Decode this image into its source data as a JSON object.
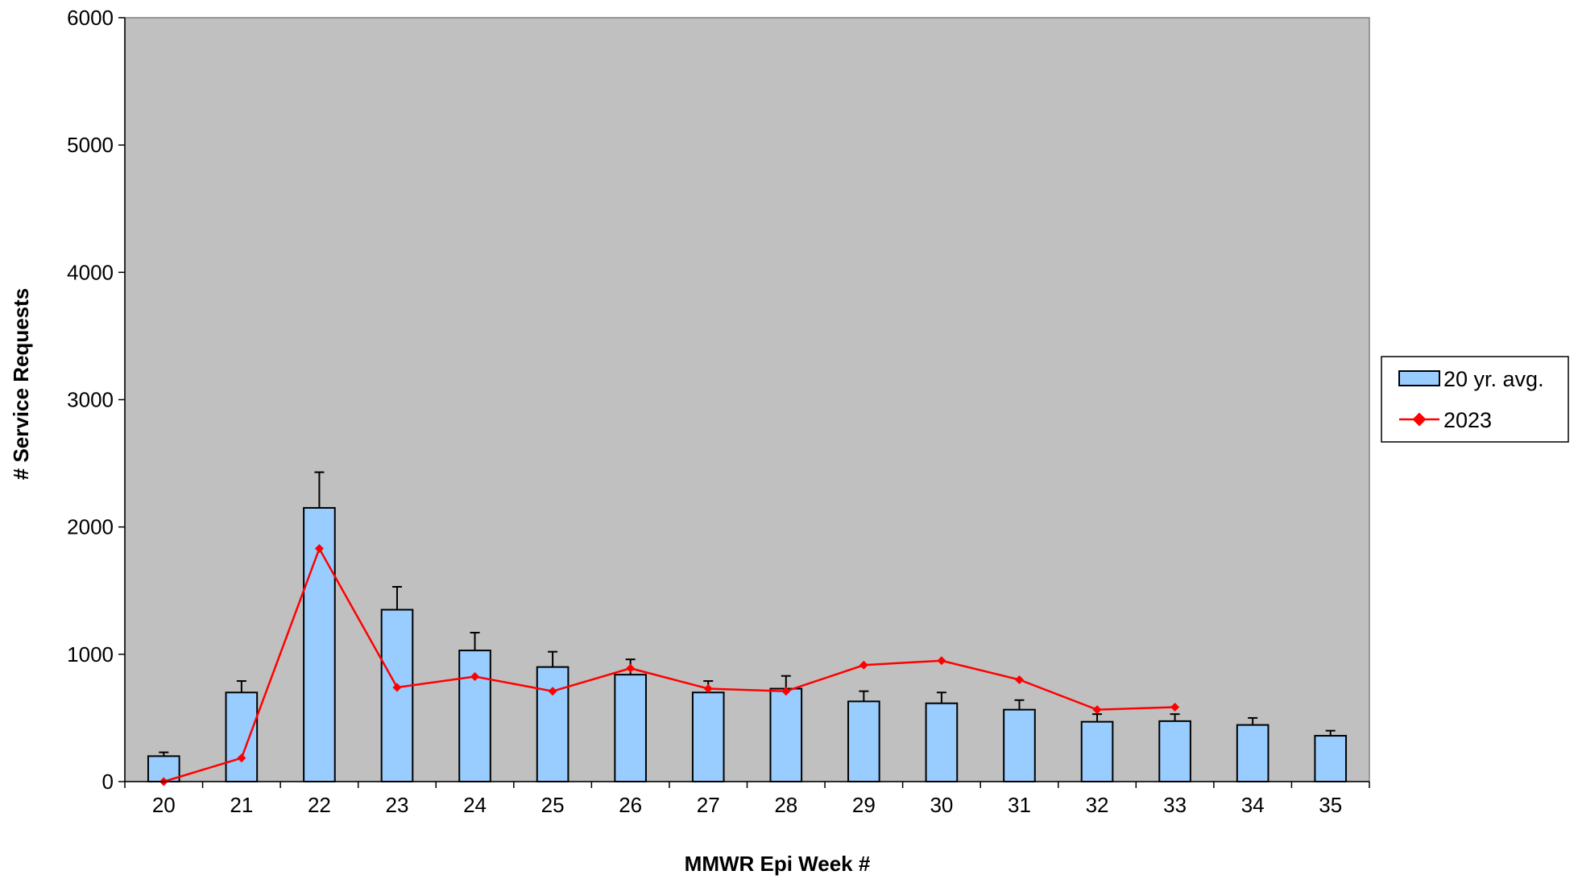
{
  "chart_data": {
    "type": "bar",
    "categories": [
      "20",
      "21",
      "22",
      "23",
      "24",
      "25",
      "26",
      "27",
      "28",
      "29",
      "30",
      "31",
      "32",
      "33",
      "34",
      "35"
    ],
    "xlabel": "MMWR Epi Week #",
    "ylabel": "# Service Requests",
    "ylim": [
      0,
      6000
    ],
    "yticks": [
      "0",
      "1000",
      "2000",
      "3000",
      "4000",
      "5000",
      "6000"
    ],
    "grid": false,
    "legend_position": "right",
    "series": [
      {
        "name": "20 yr. avg.",
        "kind": "bar",
        "color": "#99ccff",
        "values": [
          200,
          700,
          2150,
          1350,
          1030,
          900,
          840,
          700,
          730,
          630,
          615,
          565,
          470,
          475,
          445,
          360
        ],
        "error_upper": [
          230,
          790,
          2430,
          1530,
          1170,
          1020,
          960,
          790,
          830,
          710,
          700,
          640,
          530,
          530,
          500,
          400
        ]
      },
      {
        "name": "2023",
        "kind": "line",
        "color": "#ff0000",
        "values": [
          0,
          185,
          1830,
          740,
          825,
          710,
          890,
          730,
          710,
          915,
          950,
          800,
          565,
          585,
          null,
          null
        ]
      }
    ],
    "colors": {
      "plot_background": "#c0c0c0",
      "bar_fill": "#99ccff",
      "line": "#ff0000"
    }
  }
}
